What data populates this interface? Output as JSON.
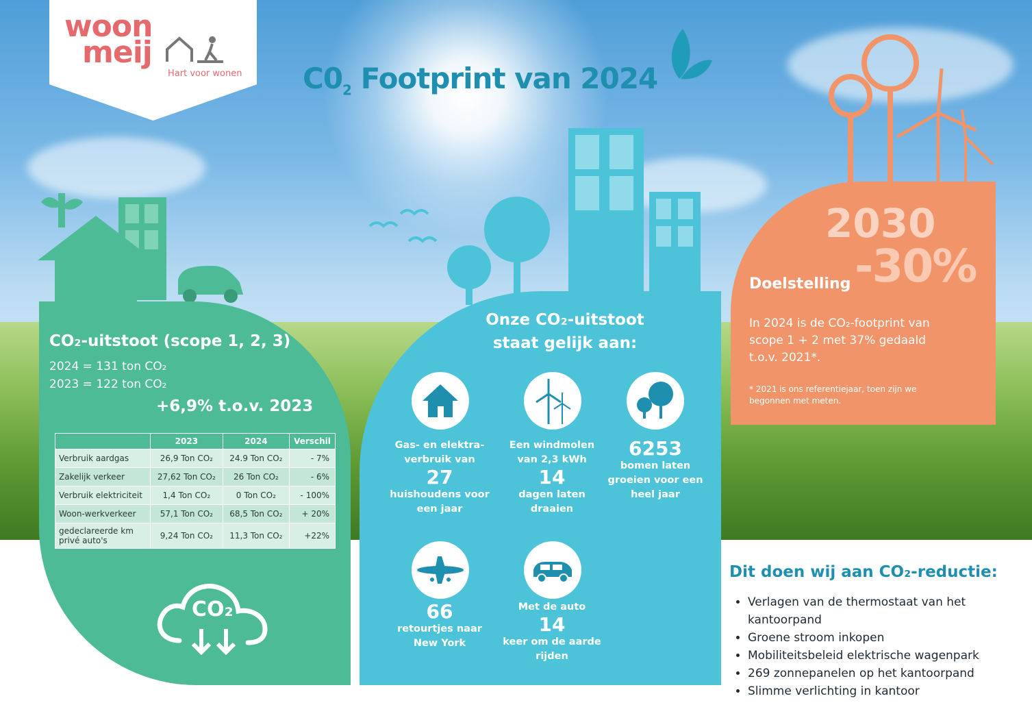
{
  "logo": {
    "line1": "woon",
    "line2": "meij",
    "tagline": "Hart voor wonen"
  },
  "title": {
    "main": "C0",
    "sub": "2",
    "rest": " Footprint van 2024"
  },
  "green": {
    "heading": "CO₂-uitstoot (scope 1, 2, 3)",
    "line_2024": "2024 = 131 ton CO₂",
    "line_2023": "2023 = 122 ton CO₂",
    "change": "+6,9% t.o.v. 2023",
    "table": {
      "headers": [
        "",
        "2023",
        "2024",
        "Verschil"
      ],
      "rows": [
        [
          "Verbruik aardgas",
          "26,9 Ton CO₂",
          "24.9 Ton CO₂",
          "- 7%"
        ],
        [
          "Zakelijk verkeer",
          "27,62 Ton CO₂",
          "26 Ton CO₂",
          "- 6%"
        ],
        [
          "Verbruik elektriciteit",
          "1,4 Ton CO₂",
          "0 Ton CO₂",
          "- 100%"
        ],
        [
          "Woon-werkverkeer",
          "57,1 Ton CO₂",
          "68,5 Ton CO₂",
          "+ 20%"
        ],
        [
          "gedeclareerde km privé auto's",
          "9,24 Ton CO₂",
          "11,3 Ton CO₂",
          "+22%"
        ]
      ]
    },
    "cloud_label": "CO₂"
  },
  "blue": {
    "heading1": "Onze CO₂-uitstoot",
    "heading2": "staat gelijk aan:",
    "stats": [
      {
        "pre": "Gas- en elektra- verbruik van",
        "big": "27",
        "post": "huishoudens voor een jaar",
        "icon": "house-icon"
      },
      {
        "pre": "Een windmolen van 2,3 kWh",
        "big": "14",
        "post": "dagen laten draaien",
        "icon": "wind-turbine-icon"
      },
      {
        "pre": "",
        "big": "6253",
        "post": "bomen laten groeien voor een heel jaar",
        "icon": "trees-icon"
      },
      {
        "pre": "",
        "big": "66",
        "post": "retourtjes naar New York",
        "icon": "airplane-icon"
      },
      {
        "pre": "Met de auto",
        "big": "14",
        "post": "keer om de aarde rijden",
        "icon": "car-icon"
      }
    ]
  },
  "orange": {
    "year": "2030",
    "target": "-30%",
    "label": "Doelstelling",
    "text": "In 2024 is de CO₂-footprint van scope 1 + 2 met 37% gedaald t.o.v. 2021*.",
    "note": "* 2021 is ons referentiejaar, toen zijn we begonnen met meten."
  },
  "reduction": {
    "heading": "Dit doen wij aan CO₂-reductie:",
    "items": [
      "Verlagen van de thermostaat van het kantoorpand",
      "Groene stroom inkopen",
      "Mobiliteitsbeleid elektrische wagenpark",
      "269 zonnepanelen op het kantoorpand",
      "Slimme verlichting in kantoor"
    ]
  },
  "colors": {
    "green": "#4cbb96",
    "blue": "#4dc3da",
    "orange": "#f1946a",
    "title": "#1f8fb0",
    "logo": "#e46a6e"
  }
}
